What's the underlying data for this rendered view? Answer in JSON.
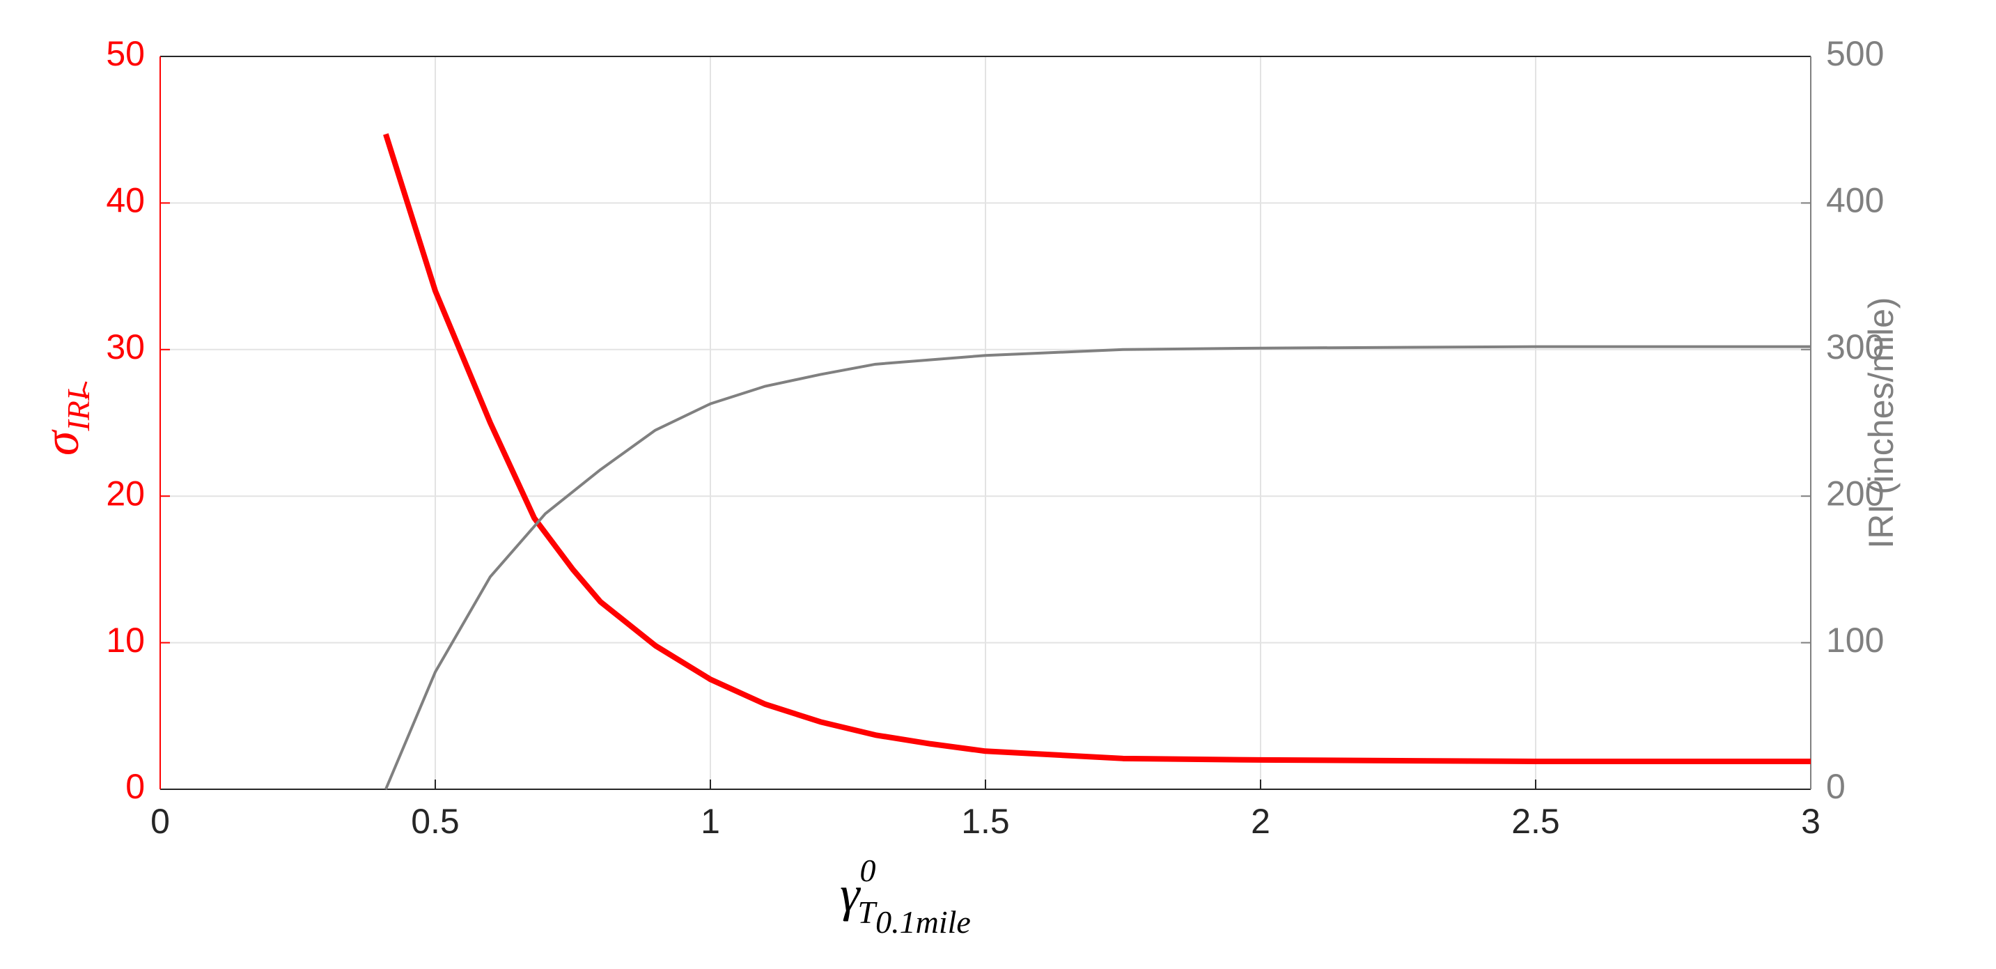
{
  "chart_data": {
    "type": "line",
    "xlabel": {
      "symbol": "γ",
      "superscript": "0",
      "subscript": "T",
      "sub_subscript": "0.1mile"
    },
    "ylabel": {
      "symbol": "σ",
      "subscript": "IRI"
    },
    "y2label": "IRI (inches/mile)",
    "xlim": [
      0,
      3
    ],
    "xticks": [
      0,
      0.5,
      1,
      1.5,
      2,
      2.5,
      3
    ],
    "ylim": [
      0,
      50
    ],
    "yticks": [
      0,
      10,
      20,
      30,
      40,
      50
    ],
    "y2lim": [
      0,
      500
    ],
    "y2ticks": [
      0,
      100,
      200,
      300,
      400,
      500
    ],
    "grid": true,
    "ycolor": "#ff0000",
    "y2color": "#808080",
    "series": [
      {
        "color": "#ff0000",
        "axis": "y",
        "x": [
          0.41,
          0.5,
          0.6,
          0.68,
          0.75,
          0.8,
          0.9,
          1.0,
          1.1,
          1.2,
          1.3,
          1.4,
          1.5,
          1.75,
          2.0,
          2.5,
          3.0
        ],
        "values": [
          44.7,
          34,
          25,
          18.5,
          15,
          12.8,
          9.8,
          7.5,
          5.8,
          4.6,
          3.7,
          3.1,
          2.6,
          2.1,
          2.0,
          1.9,
          1.9
        ]
      },
      {
        "color": "#808080",
        "axis": "y2",
        "x": [
          0.41,
          0.5,
          0.6,
          0.7,
          0.8,
          0.9,
          1.0,
          1.1,
          1.2,
          1.3,
          1.5,
          1.75,
          2.0,
          2.5,
          3.0
        ],
        "values": [
          0,
          80,
          145,
          188,
          218,
          245,
          263,
          275,
          283,
          290,
          296,
          300,
          301,
          302,
          302
        ]
      }
    ]
  }
}
